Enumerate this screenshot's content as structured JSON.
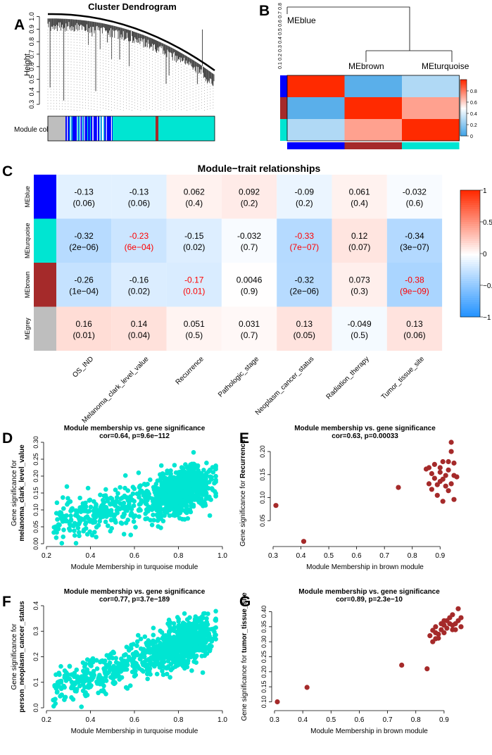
{
  "panels": {
    "A": "A",
    "B": "B",
    "C": "C",
    "D": "D",
    "E": "E",
    "F": "F",
    "G": "G"
  },
  "colors": {
    "blue": "#0000ff",
    "brown": "#a52a2a",
    "turquoise": "#00e5d2",
    "grey": "#bebebe",
    "red": "#ff2a00",
    "text_red": "#ff0000"
  },
  "chart_data": [
    {
      "panel": "A",
      "type": "dendrogram",
      "title": "Cluster Dendrogram",
      "ylabel": "Height",
      "yticks": [
        "0.3",
        "0.4",
        "0.5",
        "0.6",
        "0.7",
        "0.8",
        "0.9",
        "1.0"
      ],
      "ylim": [
        0.25,
        1.02
      ],
      "color_bar_label": "Module colors",
      "color_bar": [
        "grey",
        "blue",
        "turquoise",
        "brown",
        "turquoise"
      ]
    },
    {
      "panel": "B",
      "type": "heatmap",
      "eigengenes": [
        "MEblue",
        "MEbrown",
        "MEturquoise"
      ],
      "dendro_ticks": [
        "0.1",
        "0.2",
        "0.3",
        "0.4",
        "0.5",
        "0.6",
        "0.7",
        "0.8"
      ],
      "legend_ticks": [
        "0",
        "0.2",
        "0.4",
        "0.6",
        "0.8"
      ],
      "matrix": [
        [
          1.0,
          0.08,
          0.3
        ],
        [
          0.08,
          1.0,
          0.72
        ],
        [
          0.3,
          0.72,
          1.0
        ]
      ]
    },
    {
      "panel": "C",
      "type": "heatmap",
      "title": "Module−trait relationships",
      "rows": [
        "MEblue",
        "MEturquoise",
        "MEbrown",
        "MEgrey"
      ],
      "row_colors": [
        "blue",
        "turquoise",
        "brown",
        "grey"
      ],
      "columns": [
        "OS_IND",
        "Melanoma_clark_level_value",
        "Recurrence",
        "Pathologic_stage",
        "Neoplasm_cancer_status",
        "Radiation_therapy",
        "Tumor_tissue_site"
      ],
      "cor": [
        [
          -0.13,
          -0.13,
          0.062,
          0.092,
          -0.09,
          0.061,
          -0.032
        ],
        [
          -0.32,
          -0.23,
          -0.15,
          -0.032,
          -0.33,
          0.12,
          -0.34
        ],
        [
          -0.26,
          -0.16,
          -0.17,
          0.0046,
          -0.32,
          0.073,
          -0.38
        ],
        [
          0.16,
          0.14,
          0.051,
          0.031,
          0.13,
          -0.049,
          0.13
        ]
      ],
      "cor_text": [
        [
          "-0.13",
          "-0.13",
          "0.062",
          "0.092",
          "-0.09",
          "0.061",
          "-0.032"
        ],
        [
          "-0.32",
          "-0.23",
          "-0.15",
          "-0.032",
          "-0.33",
          "0.12",
          "-0.34"
        ],
        [
          "-0.26",
          "-0.16",
          "-0.17",
          "0.0046",
          "-0.32",
          "0.073",
          "-0.38"
        ],
        [
          "0.16",
          "0.14",
          "0.051",
          "0.031",
          "0.13",
          "-0.049",
          "0.13"
        ]
      ],
      "pval_text": [
        [
          "(0.06)",
          "(0.06)",
          "(0.4)",
          "(0.2)",
          "(0.2)",
          "(0.4)",
          "(0.6)"
        ],
        [
          "(2e−06)",
          "(6e−04)",
          "(0.02)",
          "(0.7)",
          "(7e−07)",
          "(0.07)",
          "(3e−07)"
        ],
        [
          "(1e−04)",
          "(0.02)",
          "(0.01)",
          "(0.9)",
          "(2e−06)",
          "(0.3)",
          "(9e−09)"
        ],
        [
          "(0.01)",
          "(0.04)",
          "(0.5)",
          "(0.7)",
          "(0.05)",
          "(0.5)",
          "(0.06)"
        ]
      ],
      "highlight": [
        [
          1,
          1
        ],
        [
          1,
          4
        ],
        [
          2,
          2
        ],
        [
          2,
          6
        ]
      ],
      "legend_ticks": [
        "1",
        "0.5",
        "0",
        "−0.5",
        "−1"
      ],
      "clim": [
        -1,
        1
      ]
    },
    {
      "panel": "D",
      "type": "scatter",
      "title": "Module membership vs. gene significance",
      "subtitle": "cor=0.64, p=9.6e−112",
      "xlabel": "Module Membership in turquoise module",
      "ylabel1": "Gene significance for",
      "ylabel2": "melanoma_clark_level_value",
      "xlim": [
        0.2,
        1.0
      ],
      "ylim": [
        0,
        0.3
      ],
      "xticks": [
        "0.2",
        "0.4",
        "0.6",
        "0.8",
        "1.0"
      ],
      "yticks": [
        "0.00",
        "0.05",
        "0.10",
        "0.15",
        "0.20",
        "0.25",
        "0.30"
      ],
      "color": "turquoise",
      "n_points": 1100,
      "cor": 0.64,
      "x_center": 0.82,
      "y_center": 0.14
    },
    {
      "panel": "E",
      "type": "scatter",
      "title": "Module membership vs. gene significance",
      "subtitle": "cor=0.63, p=0.00033",
      "xlabel": "Module Membership in brown module",
      "ylabel1": "Gene significance for ",
      "ylabel2": "Recurrence",
      "xlim": [
        0.3,
        0.96
      ],
      "ylim": [
        0,
        0.22
      ],
      "xticks": [
        "0.3",
        "0.4",
        "0.5",
        "0.6",
        "0.7",
        "0.8",
        "0.9"
      ],
      "yticks": [
        "0.05",
        "0.10",
        "0.15",
        "0.20"
      ],
      "color": "brown",
      "points": [
        [
          0.31,
          0.083
        ],
        [
          0.41,
          0.005
        ],
        [
          0.75,
          0.122
        ],
        [
          0.85,
          0.162
        ],
        [
          0.86,
          0.13
        ],
        [
          0.87,
          0.118
        ],
        [
          0.88,
          0.172
        ],
        [
          0.88,
          0.142
        ],
        [
          0.89,
          0.105
        ],
        [
          0.9,
          0.155
        ],
        [
          0.9,
          0.165
        ],
        [
          0.9,
          0.135
        ],
        [
          0.91,
          0.178
        ],
        [
          0.91,
          0.092
        ],
        [
          0.92,
          0.148
        ],
        [
          0.92,
          0.125
        ],
        [
          0.93,
          0.16
        ],
        [
          0.93,
          0.115
        ],
        [
          0.93,
          0.178
        ],
        [
          0.94,
          0.22
        ],
        [
          0.94,
          0.13
        ],
        [
          0.95,
          0.148
        ],
        [
          0.95,
          0.175
        ],
        [
          0.95,
          0.096
        ],
        [
          0.96,
          0.145
        ],
        [
          0.87,
          0.152
        ],
        [
          0.89,
          0.128
        ],
        [
          0.91,
          0.14
        ],
        [
          0.86,
          0.165
        ],
        [
          0.94,
          0.2
        ]
      ]
    },
    {
      "panel": "F",
      "type": "scatter",
      "title": "Module membership vs. gene significance",
      "subtitle": "cor=0.77, p=3.7e−189",
      "xlabel": "Module Membership in turquoise module",
      "ylabel1": "Gene significance for",
      "ylabel2": "person_neoplasm_cancer_status",
      "xlim": [
        0.2,
        1.0
      ],
      "ylim": [
        0,
        0.4
      ],
      "xticks": [
        "0.2",
        "0.4",
        "0.6",
        "0.8",
        "1.0"
      ],
      "yticks": [
        "0.0",
        "0.1",
        "0.2",
        "0.3",
        "0.4"
      ],
      "color": "turquoise",
      "n_points": 1100,
      "cor": 0.77,
      "x_center": 0.82,
      "y_center": 0.23
    },
    {
      "panel": "G",
      "type": "scatter",
      "title": "Module membership vs. gene significance",
      "subtitle": "cor=0.89, p=2.3e−10",
      "xlabel": "Module Membership in brown module",
      "ylabel1": "Gene significance for ",
      "ylabel2": "tumor_tissue_site",
      "xlim": [
        0.3,
        0.97
      ],
      "ylim": [
        0.08,
        0.42
      ],
      "xticks": [
        "0.3",
        "0.4",
        "0.5",
        "0.6",
        "0.7",
        "0.8",
        "0.9"
      ],
      "yticks": [
        "0.10",
        "0.15",
        "0.20",
        "0.25",
        "0.30",
        "0.35",
        "0.40"
      ],
      "color": "brown",
      "points": [
        [
          0.31,
          0.1
        ],
        [
          0.415,
          0.148
        ],
        [
          0.75,
          0.222
        ],
        [
          0.84,
          0.21
        ],
        [
          0.85,
          0.32
        ],
        [
          0.86,
          0.338
        ],
        [
          0.86,
          0.3
        ],
        [
          0.87,
          0.31
        ],
        [
          0.87,
          0.35
        ],
        [
          0.88,
          0.325
        ],
        [
          0.88,
          0.312
        ],
        [
          0.89,
          0.36
        ],
        [
          0.89,
          0.34
        ],
        [
          0.9,
          0.355
        ],
        [
          0.9,
          0.33
        ],
        [
          0.91,
          0.37
        ],
        [
          0.91,
          0.345
        ],
        [
          0.92,
          0.38
        ],
        [
          0.92,
          0.36
        ],
        [
          0.93,
          0.39
        ],
        [
          0.93,
          0.355
        ],
        [
          0.94,
          0.36
        ],
        [
          0.94,
          0.34
        ],
        [
          0.95,
          0.37
        ],
        [
          0.95,
          0.41
        ],
        [
          0.96,
          0.38
        ],
        [
          0.96,
          0.35
        ],
        [
          0.87,
          0.33
        ],
        [
          0.9,
          0.37
        ],
        [
          0.93,
          0.34
        ]
      ]
    }
  ]
}
